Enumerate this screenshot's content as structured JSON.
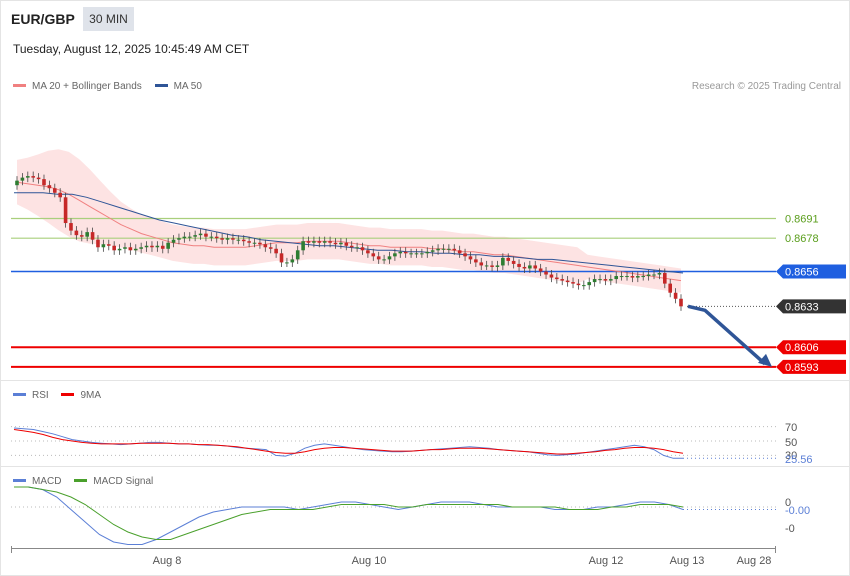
{
  "header": {
    "symbol": "EUR/GBP",
    "timeframe": "30 MIN",
    "timestamp": "Tuesday, August 12, 2025 10:45:49 AM CET"
  },
  "legend_main": [
    {
      "name": "MA 20 + Bollinger Bands",
      "color": "#f08080"
    },
    {
      "name": "MA 50",
      "color": "#2f5597"
    }
  ],
  "copyright": "Research © 2025 Trading Central",
  "levels": [
    {
      "value": "0.8691",
      "kind": "resistance-2",
      "color": "#a9cf7c",
      "text_color": "#5a9e1c",
      "price": 0.8691
    },
    {
      "value": "0.8678",
      "kind": "resistance-1",
      "color": "#a9cf7c",
      "text_color": "#5a9e1c",
      "price": 0.8678
    },
    {
      "value": "0.8656",
      "kind": "pivot",
      "color": "#1f5fe0",
      "text_color": "#ffffff",
      "price": 0.8656
    },
    {
      "value": "0.8633",
      "kind": "last-price",
      "color": "#333333",
      "text_color": "#ffffff",
      "price": 0.8633
    },
    {
      "value": "0.8606",
      "kind": "target-1",
      "color": "#ee0000",
      "text_color": "#ffffff",
      "price": 0.8606
    },
    {
      "value": "0.8593",
      "kind": "target-2",
      "color": "#ee0000",
      "text_color": "#ffffff",
      "price": 0.8593
    }
  ],
  "legend_rsi": [
    {
      "name": "RSI",
      "color": "#5b7fd6"
    },
    {
      "name": "9MA",
      "color": "#ee0000"
    }
  ],
  "rsi_labels": {
    "l70": "70",
    "l50": "50",
    "l30": "30",
    "value": "25.56"
  },
  "legend_macd": [
    {
      "name": "MACD",
      "color": "#5b7fd6"
    },
    {
      "name": "MACD Signal",
      "color": "#4aa02c"
    }
  ],
  "macd_labels": {
    "zero": "0",
    "value": "-0.00",
    "neg": "-0"
  },
  "x_ticks": [
    "Aug 8",
    "Aug 10",
    "Aug 12",
    "Aug 13",
    "Aug 28"
  ],
  "chart_data": {
    "type": "candlestick",
    "symbol": "EUR/GBP",
    "interval": "30 MIN",
    "ylim": [
      0.8585,
      0.8735
    ],
    "close": [
      0.8716,
      0.8718,
      0.8719,
      0.8718,
      0.8717,
      0.8713,
      0.8711,
      0.8708,
      0.8705,
      0.8688,
      0.8683,
      0.868,
      0.8679,
      0.8682,
      0.8677,
      0.8672,
      0.8674,
      0.8673,
      0.867,
      0.8671,
      0.8672,
      0.867,
      0.8671,
      0.8672,
      0.8673,
      0.8672,
      0.8673,
      0.8671,
      0.8675,
      0.8677,
      0.8678,
      0.8679,
      0.8679,
      0.868,
      0.8681,
      0.8679,
      0.8679,
      0.8678,
      0.8677,
      0.8678,
      0.8677,
      0.8677,
      0.8676,
      0.8675,
      0.8675,
      0.8674,
      0.8672,
      0.8671,
      0.8668,
      0.8662,
      0.8662,
      0.8664,
      0.867,
      0.8676,
      0.8675,
      0.8676,
      0.8675,
      0.8676,
      0.8675,
      0.8674,
      0.8675,
      0.8673,
      0.8672,
      0.8672,
      0.867,
      0.8668,
      0.8666,
      0.8664,
      0.8664,
      0.8666,
      0.8668,
      0.8669,
      0.8668,
      0.8668,
      0.8668,
      0.8668,
      0.8669,
      0.867,
      0.8671,
      0.8671,
      0.8671,
      0.867,
      0.8668,
      0.8666,
      0.8664,
      0.8662,
      0.866,
      0.866,
      0.8659,
      0.866,
      0.8665,
      0.8663,
      0.8661,
      0.8659,
      0.8658,
      0.866,
      0.8658,
      0.8656,
      0.8654,
      0.8652,
      0.8651,
      0.865,
      0.8649,
      0.8648,
      0.8647,
      0.8647,
      0.8649,
      0.8651,
      0.8651,
      0.865,
      0.8651,
      0.8653,
      0.8653,
      0.8653,
      0.8652,
      0.8653,
      0.8653,
      0.8654,
      0.8654,
      0.8655,
      0.8648,
      0.8642,
      0.8638,
      0.8633
    ],
    "ma20": [
      0.8715,
      0.8714,
      0.8713,
      0.8712,
      0.871,
      0.8707,
      0.8703,
      0.8699,
      0.8695,
      0.8691,
      0.8687,
      0.8684,
      0.8681,
      0.8679,
      0.8677,
      0.8675,
      0.8674,
      0.8673,
      0.8673,
      0.8672,
      0.8672,
      0.8672,
      0.8672,
      0.8673,
      0.8674,
      0.8675,
      0.8675,
      0.8675,
      0.8676,
      0.8676,
      0.8676,
      0.8676,
      0.8675,
      0.8674,
      0.8673,
      0.8673,
      0.8672,
      0.8672,
      0.8672,
      0.8672,
      0.8671,
      0.8671,
      0.867,
      0.8669,
      0.8669,
      0.8668,
      0.8667,
      0.8667,
      0.8666,
      0.8665,
      0.8664,
      0.8663,
      0.8662,
      0.8661,
      0.866,
      0.8659,
      0.8658,
      0.8657,
      0.8656,
      0.8655,
      0.8654,
      0.8653,
      0.8652,
      0.8651,
      0.865
    ],
    "ma50": [
      0.8708,
      0.8708,
      0.8708,
      0.8707,
      0.8707,
      0.8705,
      0.8702,
      0.8699,
      0.8696,
      0.8693,
      0.869,
      0.8688,
      0.8686,
      0.8684,
      0.8682,
      0.868,
      0.8679,
      0.8677,
      0.8676,
      0.8675,
      0.8674,
      0.8673,
      0.8673,
      0.8672,
      0.8671,
      0.867,
      0.867,
      0.8669,
      0.8669,
      0.8668,
      0.8668,
      0.8667,
      0.8667,
      0.8666,
      0.8666,
      0.8665,
      0.8664,
      0.8664,
      0.8663,
      0.8662,
      0.8661,
      0.866,
      0.8659,
      0.8658,
      0.8657,
      0.8656,
      0.8655
    ],
    "rsi": [
      68,
      67,
      66,
      63,
      60,
      56,
      52,
      50,
      48,
      47,
      46,
      45,
      46,
      47,
      48,
      48,
      47,
      46,
      46,
      45,
      44,
      44,
      43,
      41,
      40,
      39,
      38,
      30,
      29,
      33,
      40,
      44,
      46,
      44,
      42,
      40,
      38,
      37,
      36,
      35,
      35,
      36,
      37,
      38,
      39,
      40,
      41,
      42,
      41,
      40,
      38,
      37,
      36,
      35,
      33,
      31,
      30,
      31,
      32,
      34,
      36,
      38,
      40,
      42,
      44,
      42,
      38,
      30,
      26,
      26
    ],
    "rsi_ma9": [
      66,
      64,
      62,
      59,
      55,
      52,
      50,
      48,
      47,
      46,
      46,
      46,
      46,
      47,
      47,
      47,
      47,
      46,
      46,
      45,
      45,
      44,
      43,
      42,
      40,
      38,
      36,
      34,
      33,
      33,
      35,
      38,
      40,
      41,
      41,
      40,
      39,
      38,
      37,
      36,
      36,
      36,
      37,
      38,
      38,
      39,
      40,
      40,
      40,
      39,
      38,
      37,
      36,
      35,
      34,
      33,
      32,
      32,
      33,
      34,
      35,
      37,
      38,
      40,
      41,
      41,
      40,
      38,
      35,
      33
    ],
    "macd": [
      0.0008,
      0.0008,
      0.0007,
      0.0004,
      -0.0001,
      -0.0006,
      -0.0011,
      -0.0014,
      -0.0015,
      -0.0015,
      -0.0013,
      -0.001,
      -0.0007,
      -0.0004,
      -0.0002,
      -0.0001,
      0.0,
      0.0,
      0.0,
      0.0,
      -0.0001,
      0.0,
      0.0001,
      0.0002,
      0.0002,
      0.0001,
      0.0,
      -0.0001,
      0.0,
      0.0001,
      0.0002,
      0.0002,
      0.0002,
      0.0001,
      0.0,
      0.0,
      0.0,
      0.0,
      -0.0001,
      -0.0001,
      -0.0001,
      0.0,
      0.0,
      0.0001,
      0.0002,
      0.0002,
      0.0001,
      -0.0001
    ],
    "macd_signal": [
      0.0008,
      0.0008,
      0.0007,
      0.0006,
      0.0004,
      0.0001,
      -0.0003,
      -0.0007,
      -0.001,
      -0.0012,
      -0.0013,
      -0.0013,
      -0.0011,
      -0.0009,
      -0.0007,
      -0.0005,
      -0.0003,
      -0.0002,
      -0.0001,
      -0.0001,
      -0.0001,
      -0.0001,
      0.0,
      0.0001,
      0.0001,
      0.0001,
      0.0001,
      0.0,
      0.0,
      0.0001,
      0.0001,
      0.0001,
      0.0001,
      0.0001,
      0.0001,
      0.0,
      0.0,
      0.0,
      0.0,
      -0.0001,
      -0.0001,
      -0.0001,
      0.0,
      0.0,
      0.0001,
      0.0001,
      0.0001,
      0.0
    ]
  }
}
